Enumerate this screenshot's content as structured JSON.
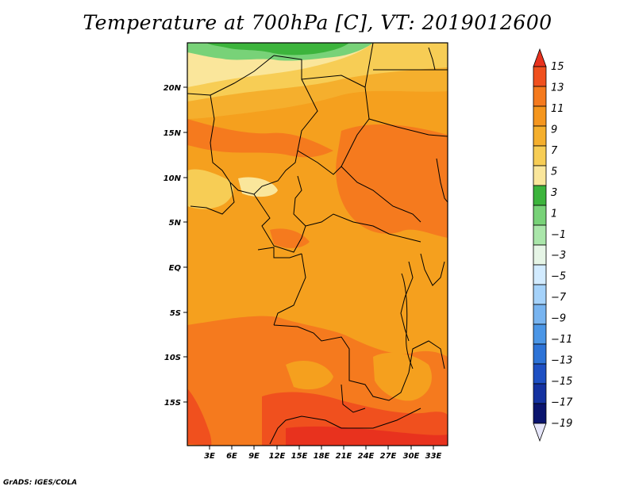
{
  "title": "Temperature at 700hPa [C], VT: 2019012600",
  "credit": "GrADS: IGES/COLA",
  "map": {
    "lat_labels": [
      "20N",
      "15N",
      "10N",
      "5N",
      "EQ",
      "5S",
      "10S",
      "15S"
    ],
    "lon_labels": [
      "3E",
      "6E",
      "9E",
      "12E",
      "15E",
      "18E",
      "21E",
      "24E",
      "27E",
      "30E",
      "33E"
    ]
  },
  "colorbar": {
    "labels": [
      "15",
      "13",
      "11",
      "9",
      "7",
      "5",
      "3",
      "1",
      "−1",
      "−3",
      "−5",
      "−7",
      "−9",
      "−11",
      "−13",
      "−15",
      "−17",
      "−19"
    ],
    "colors": [
      "#e8321e",
      "#f0501e",
      "#f57a1e",
      "#f5961e",
      "#f5af2d",
      "#f7cd55",
      "#fae69b",
      "#3cb43c",
      "#78d278",
      "#aae6aa",
      "#e6f5e6",
      "#d2ebff",
      "#a5d2fa",
      "#78b4f0",
      "#4b96e6",
      "#2d73d7",
      "#1e50c3",
      "#1432a0",
      "#0a146e",
      "#e6e6fa"
    ]
  }
}
